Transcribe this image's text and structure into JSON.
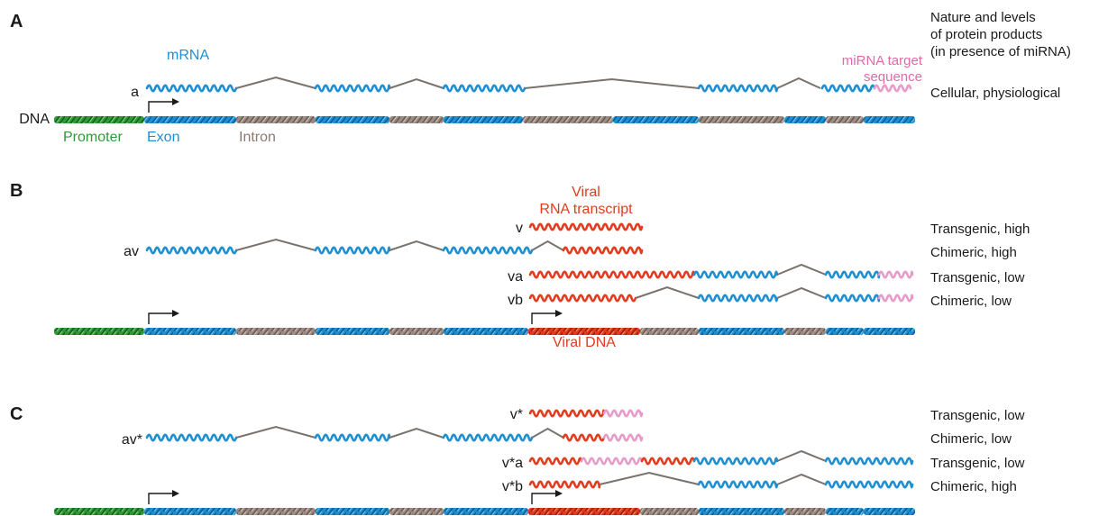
{
  "colors": {
    "exon": "#1e8fd0",
    "intron": "#8a7a72",
    "promoter": "#2f9a3a",
    "viral": "#e23b1e",
    "mirna": "#e69bc8",
    "connector": "#7a726c",
    "text": "#1a1a1a"
  },
  "panels": {
    "a": "A",
    "b": "B",
    "c": "C"
  },
  "header": {
    "line1": "Nature and levels",
    "line2": "of protein products",
    "line3": "(in presence of miRNA)"
  },
  "annotations": {
    "dna": "DNA",
    "mrna": "mRNA",
    "promoter": "Promoter",
    "exon": "Exon",
    "intron": "Intron",
    "mirna_target_1": "miRNA target",
    "mirna_target_2": "sequence",
    "viral_1": "Viral",
    "viral_2": "RNA transcript",
    "viral_dna": "Viral DNA"
  },
  "transcripts": {
    "a": "a",
    "v": "v",
    "av": "av",
    "va": "va",
    "vb": "vb",
    "vstar": "v*",
    "avstar": "av*",
    "vstara": "v*a",
    "vstarb": "v*b"
  },
  "results": {
    "a": "Cellular, physiological",
    "b1": "Transgenic, high",
    "b2": "Chimeric, high",
    "b3": "Transgenic, low",
    "b4": "Chimeric, low",
    "c1": "Transgenic, low",
    "c2": "Chimeric, low",
    "c3": "Transgenic, low",
    "c4": "Chimeric, high"
  }
}
